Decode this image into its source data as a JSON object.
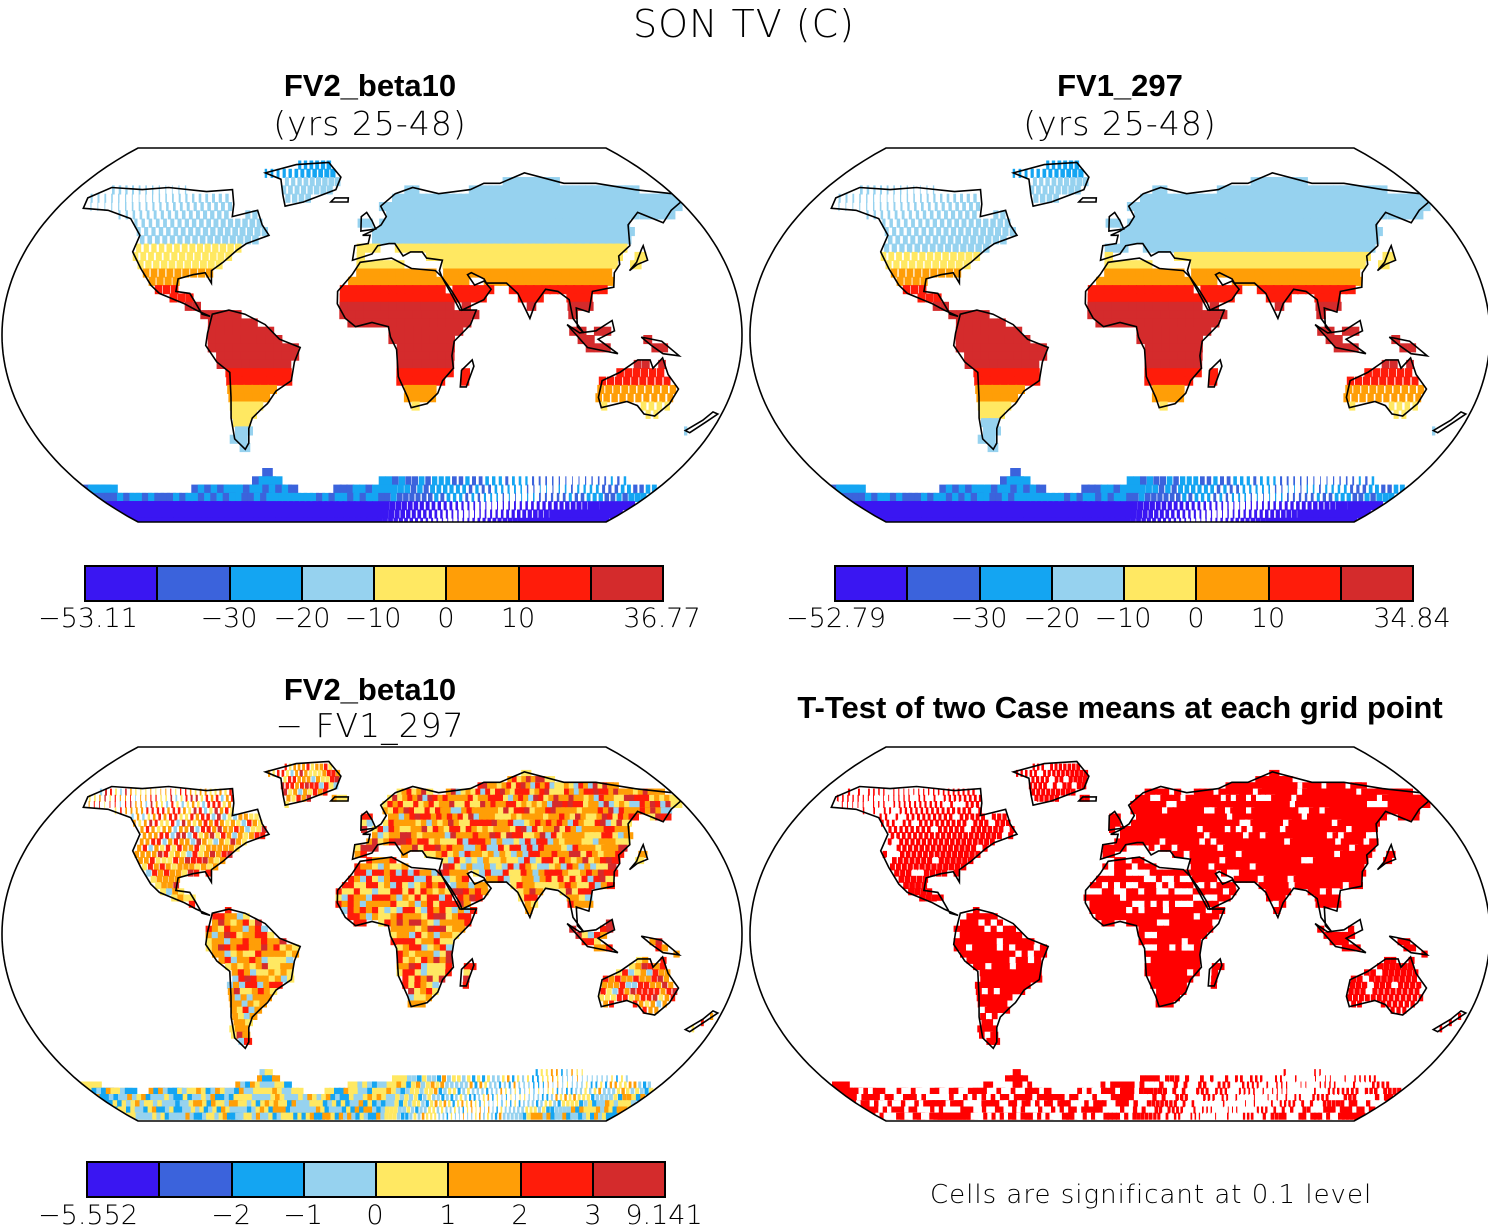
{
  "figure": {
    "title": "SON TV (C)"
  },
  "palette": {
    "blues": [
      "#3a16f2",
      "#3b63dc",
      "#14a5f2",
      "#96d2ef"
    ],
    "warms": [
      "#ffe862",
      "#ff9e07",
      "#ff1c0a",
      "#d42b2c"
    ],
    "significant": "#ff0000",
    "ocean": "#ffffff",
    "coast": "#000000"
  },
  "panels": [
    {
      "title": "FV2_beta10",
      "subtitle": "(yrs 25-48)",
      "colorbar_labels": [
        "−53.11",
        "−30",
        "−20",
        "−10",
        "0",
        "10",
        "36.77"
      ],
      "fill_mode": "climatology"
    },
    {
      "title": "FV1_297",
      "subtitle": "(yrs 25-48)",
      "colorbar_labels": [
        "−52.79",
        "−30",
        "−20",
        "−10",
        "0",
        "10",
        "34.84"
      ],
      "fill_mode": "climatology"
    },
    {
      "title": "FV2_beta10",
      "subtitle": "− FV1_297",
      "colorbar_labels": [
        "−5.552",
        "−2",
        "−1",
        "0",
        "1",
        "2",
        "3",
        "9.141"
      ],
      "fill_mode": "difference"
    },
    {
      "title": "T-Test of two Case means at each grid point",
      "subtitle": "",
      "note": "Cells are significant at 0.1 level",
      "fill_mode": "ttest"
    }
  ]
}
